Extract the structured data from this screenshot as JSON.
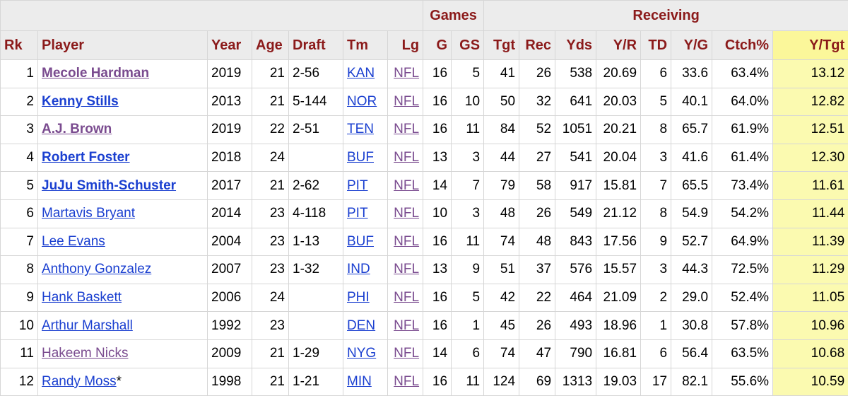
{
  "over_headers": {
    "games": "Games",
    "receiving": "Receiving"
  },
  "columns": [
    "Rk",
    "Player",
    "Year",
    "Age",
    "Draft",
    "Tm",
    "Lg",
    "G",
    "GS",
    "Tgt",
    "Rec",
    "Yds",
    "Y/R",
    "TD",
    "Y/G",
    "Ctch%",
    "Y/Tgt"
  ],
  "rows": [
    {
      "rk": "1",
      "player": "Mecole Hardman",
      "suffix": "",
      "year": "2019",
      "age": "21",
      "draft": "2-56",
      "tm": "KAN",
      "lg": "NFL",
      "g": "16",
      "gs": "5",
      "tgt": "41",
      "rec": "26",
      "yds": "538",
      "yr": "20.69",
      "td": "6",
      "yg": "33.6",
      "ctch": "63.4%",
      "ytgt": "13.12"
    },
    {
      "rk": "2",
      "player": "Kenny Stills",
      "suffix": "",
      "year": "2013",
      "age": "21",
      "draft": "5-144",
      "tm": "NOR",
      "lg": "NFL",
      "g": "16",
      "gs": "10",
      "tgt": "50",
      "rec": "32",
      "yds": "641",
      "yr": "20.03",
      "td": "5",
      "yg": "40.1",
      "ctch": "64.0%",
      "ytgt": "12.82"
    },
    {
      "rk": "3",
      "player": "A.J. Brown",
      "suffix": "",
      "year": "2019",
      "age": "22",
      "draft": "2-51",
      "tm": "TEN",
      "lg": "NFL",
      "g": "16",
      "gs": "11",
      "tgt": "84",
      "rec": "52",
      "yds": "1051",
      "yr": "20.21",
      "td": "8",
      "yg": "65.7",
      "ctch": "61.9%",
      "ytgt": "12.51"
    },
    {
      "rk": "4",
      "player": "Robert Foster",
      "suffix": "",
      "year": "2018",
      "age": "24",
      "draft": "",
      "tm": "BUF",
      "lg": "NFL",
      "g": "13",
      "gs": "3",
      "tgt": "44",
      "rec": "27",
      "yds": "541",
      "yr": "20.04",
      "td": "3",
      "yg": "41.6",
      "ctch": "61.4%",
      "ytgt": "12.30"
    },
    {
      "rk": "5",
      "player": "JuJu Smith-Schuster",
      "suffix": "",
      "year": "2017",
      "age": "21",
      "draft": "2-62",
      "tm": "PIT",
      "lg": "NFL",
      "g": "14",
      "gs": "7",
      "tgt": "79",
      "rec": "58",
      "yds": "917",
      "yr": "15.81",
      "td": "7",
      "yg": "65.5",
      "ctch": "73.4%",
      "ytgt": "11.61"
    },
    {
      "rk": "6",
      "player": "Martavis Bryant",
      "suffix": "",
      "year": "2014",
      "age": "23",
      "draft": "4-118",
      "tm": "PIT",
      "lg": "NFL",
      "g": "10",
      "gs": "3",
      "tgt": "48",
      "rec": "26",
      "yds": "549",
      "yr": "21.12",
      "td": "8",
      "yg": "54.9",
      "ctch": "54.2%",
      "ytgt": "11.44"
    },
    {
      "rk": "7",
      "player": "Lee Evans",
      "suffix": "",
      "year": "2004",
      "age": "23",
      "draft": "1-13",
      "tm": "BUF",
      "lg": "NFL",
      "g": "16",
      "gs": "11",
      "tgt": "74",
      "rec": "48",
      "yds": "843",
      "yr": "17.56",
      "td": "9",
      "yg": "52.7",
      "ctch": "64.9%",
      "ytgt": "11.39"
    },
    {
      "rk": "8",
      "player": "Anthony Gonzalez",
      "suffix": "",
      "year": "2007",
      "age": "23",
      "draft": "1-32",
      "tm": "IND",
      "lg": "NFL",
      "g": "13",
      "gs": "9",
      "tgt": "51",
      "rec": "37",
      "yds": "576",
      "yr": "15.57",
      "td": "3",
      "yg": "44.3",
      "ctch": "72.5%",
      "ytgt": "11.29"
    },
    {
      "rk": "9",
      "player": "Hank Baskett",
      "suffix": "",
      "year": "2006",
      "age": "24",
      "draft": "",
      "tm": "PHI",
      "lg": "NFL",
      "g": "16",
      "gs": "5",
      "tgt": "42",
      "rec": "22",
      "yds": "464",
      "yr": "21.09",
      "td": "2",
      "yg": "29.0",
      "ctch": "52.4%",
      "ytgt": "11.05"
    },
    {
      "rk": "10",
      "player": "Arthur Marshall",
      "suffix": "",
      "year": "1992",
      "age": "23",
      "draft": "",
      "tm": "DEN",
      "lg": "NFL",
      "g": "16",
      "gs": "1",
      "tgt": "45",
      "rec": "26",
      "yds": "493",
      "yr": "18.96",
      "td": "1",
      "yg": "30.8",
      "ctch": "57.8%",
      "ytgt": "10.96"
    },
    {
      "rk": "11",
      "player": "Hakeem Nicks",
      "suffix": "",
      "year": "2009",
      "age": "21",
      "draft": "1-29",
      "tm": "NYG",
      "lg": "NFL",
      "g": "14",
      "gs": "6",
      "tgt": "74",
      "rec": "47",
      "yds": "790",
      "yr": "16.81",
      "td": "6",
      "yg": "56.4",
      "ctch": "63.5%",
      "ytgt": "10.68"
    },
    {
      "rk": "12",
      "player": "Randy Moss",
      "suffix": "*",
      "year": "1998",
      "age": "21",
      "draft": "1-21",
      "tm": "MIN",
      "lg": "NFL",
      "g": "16",
      "gs": "11",
      "tgt": "124",
      "rec": "69",
      "yds": "1313",
      "yr": "19.03",
      "td": "17",
      "yg": "82.1",
      "ctch": "55.6%",
      "ytgt": "10.59"
    }
  ],
  "colors": {
    "header_text": "#8b1a1a",
    "header_bg": "#ececec",
    "link": "#1a3fd0",
    "visited_link": "#7a4b8f",
    "sorted_column_bg": "#fbfab0"
  }
}
